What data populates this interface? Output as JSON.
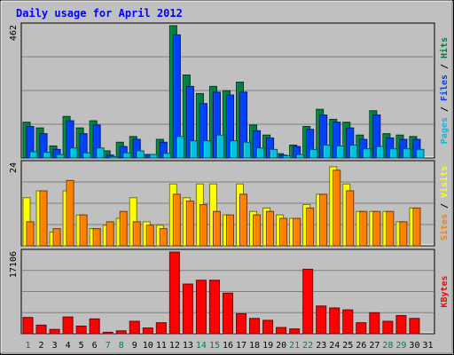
{
  "chart_data": {
    "type": "bar",
    "title": "Daily usage for April 2012",
    "categories": [
      "1",
      "2",
      "3",
      "4",
      "5",
      "6",
      "7",
      "8",
      "9",
      "10",
      "11",
      "12",
      "13",
      "14",
      "15",
      "16",
      "17",
      "18",
      "19",
      "20",
      "21",
      "22",
      "23",
      "24",
      "25",
      "26",
      "27",
      "28",
      "29",
      "30",
      "31"
    ],
    "weekend_days": [
      "1",
      "7",
      "8",
      "14",
      "15",
      "21",
      "22",
      "28",
      "29"
    ],
    "panels": [
      {
        "name": "hits-files-pages",
        "ymax_label": "462",
        "ylim": [
          0,
          462
        ],
        "legend": [
          {
            "text": "Pages",
            "color": "#00c0e0"
          },
          {
            "text": " / ",
            "color": "#000000"
          },
          {
            "text": "Files",
            "color": "#0040ff"
          },
          {
            "text": " / ",
            "color": "#000000"
          },
          {
            "text": "Hits",
            "color": "#008040"
          }
        ],
        "series": [
          {
            "name": "Hits",
            "color": "#008040",
            "values": [
              125,
              105,
              42,
              145,
              105,
              130,
              25,
              55,
              75,
              12,
              65,
              462,
              290,
              225,
              250,
              235,
              265,
              115,
              80,
              15,
              45,
              110,
              170,
              135,
              125,
              80,
              165,
              85,
              80,
              75,
              0
            ]
          },
          {
            "name": "Files",
            "color": "#0040ff",
            "values": [
              110,
              85,
              30,
              130,
              85,
              115,
              10,
              40,
              65,
              12,
              55,
              430,
              250,
              190,
              230,
              220,
              230,
              95,
              70,
              10,
              40,
              100,
              150,
              125,
              105,
              65,
              150,
              70,
              65,
              65,
              0
            ]
          },
          {
            "name": "Pages",
            "color": "#00c0e0",
            "values": [
              22,
              20,
              12,
              35,
              18,
              35,
              5,
              18,
              25,
              12,
              16,
              75,
              60,
              60,
              80,
              60,
              55,
              35,
              30,
              8,
              12,
              30,
              45,
              42,
              45,
              32,
              40,
              32,
              32,
              30,
              0
            ]
          }
        ]
      },
      {
        "name": "visits-sites",
        "ymax_label": "24",
        "ylim": [
          0,
          24
        ],
        "legend": [
          {
            "text": "Sites",
            "color": "#ff8000"
          },
          {
            "text": " / ",
            "color": "#000000"
          },
          {
            "text": "Visits",
            "color": "#ffff00"
          }
        ],
        "series": [
          {
            "name": "Visits",
            "color": "#ffff00",
            "values": [
              14,
              16,
              4,
              16,
              9,
              5,
              6,
              8,
              14,
              7,
              6,
              18,
              14,
              18,
              18,
              9,
              18,
              10,
              11,
              9,
              8,
              12,
              15,
              23,
              18,
              10,
              10,
              10,
              7,
              11,
              0
            ]
          },
          {
            "name": "Sites",
            "color": "#ff8000",
            "values": [
              7,
              16,
              5,
              19,
              9,
              5,
              7,
              10,
              7,
              6,
              5,
              15,
              13,
              12,
              10,
              9,
              15,
              9,
              10,
              8,
              8,
              11,
              15,
              22,
              16,
              10,
              10,
              10,
              7,
              11,
              0
            ]
          }
        ]
      },
      {
        "name": "kbytes",
        "ymax_label": "17106",
        "ylim": [
          0,
          17106
        ],
        "legend": [
          {
            "text": "KBytes",
            "color": "#ff0000"
          }
        ],
        "series": [
          {
            "name": "KBytes",
            "color": "#ff0000",
            "values": [
              3400,
              1800,
              900,
              3500,
              1600,
              3100,
              300,
              600,
              2600,
              1200,
              2300,
              17106,
              10400,
              11200,
              11200,
              8500,
              4200,
              3200,
              2800,
              1300,
              1000,
              13500,
              5800,
              5400,
              5000,
              2300,
              4400,
              2600,
              3800,
              3200,
              0
            ]
          }
        ]
      }
    ]
  }
}
